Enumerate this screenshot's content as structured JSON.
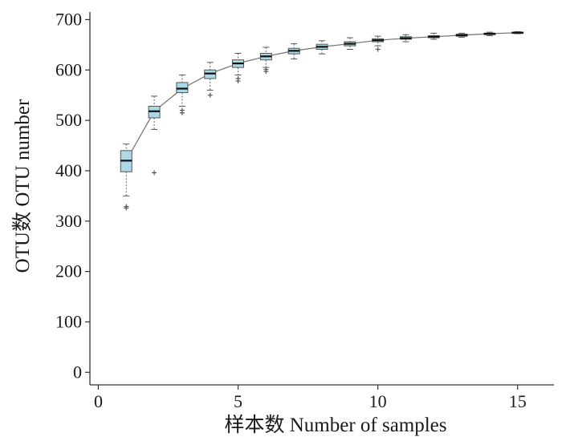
{
  "chart_data": {
    "type": "box",
    "xlabel": "样本数 Number of samples",
    "ylabel": "OTU数 OTU number",
    "xlim": [
      -0.3,
      16.3
    ],
    "ylim": [
      -25,
      715
    ],
    "x_ticks": [
      0,
      5,
      10,
      15
    ],
    "y_ticks": [
      0,
      100,
      200,
      300,
      400,
      500,
      600,
      700
    ],
    "grid": false,
    "colors": {
      "box_fill": "#add8e6",
      "median": "#111111",
      "line": "#707070"
    },
    "boxes": [
      {
        "x": 1,
        "q1": 398,
        "median": 420,
        "q3": 440,
        "whisker_low": 350,
        "whisker_high": 453,
        "outliers": [
          326,
          329
        ]
      },
      {
        "x": 2,
        "q1": 505,
        "median": 518,
        "q3": 528,
        "whisker_low": 482,
        "whisker_high": 548,
        "outliers": [
          396
        ]
      },
      {
        "x": 3,
        "q1": 555,
        "median": 563,
        "q3": 575,
        "whisker_low": 528,
        "whisker_high": 590,
        "outliers": [
          515,
          520
        ]
      },
      {
        "x": 4,
        "q1": 583,
        "median": 593,
        "q3": 600,
        "whisker_low": 560,
        "whisker_high": 615,
        "outliers": [
          550
        ]
      },
      {
        "x": 5,
        "q1": 605,
        "median": 613,
        "q3": 620,
        "whisker_low": 590,
        "whisker_high": 633,
        "outliers": [
          578,
          583
        ]
      },
      {
        "x": 6,
        "q1": 620,
        "median": 627,
        "q3": 633,
        "whisker_low": 605,
        "whisker_high": 645,
        "outliers": [
          597,
          601
        ]
      },
      {
        "x": 7,
        "q1": 632,
        "median": 638,
        "q3": 643,
        "whisker_low": 622,
        "whisker_high": 652,
        "outliers": []
      },
      {
        "x": 8,
        "q1": 641,
        "median": 646,
        "q3": 651,
        "whisker_low": 632,
        "whisker_high": 658,
        "outliers": []
      },
      {
        "x": 9,
        "q1": 648,
        "median": 652,
        "q3": 656,
        "whisker_low": 641,
        "whisker_high": 664,
        "outliers": []
      },
      {
        "x": 10,
        "q1": 656,
        "median": 659,
        "q3": 662,
        "whisker_low": 648,
        "whisker_high": 667,
        "outliers": [
          641
        ]
      },
      {
        "x": 11,
        "q1": 661,
        "median": 663,
        "q3": 666,
        "whisker_low": 656,
        "whisker_high": 670,
        "outliers": []
      },
      {
        "x": 12,
        "q1": 664,
        "median": 666,
        "q3": 668,
        "whisker_low": 661,
        "whisker_high": 673,
        "outliers": []
      },
      {
        "x": 13,
        "q1": 667,
        "median": 669,
        "q3": 671,
        "whisker_low": 665,
        "whisker_high": 673,
        "outliers": []
      },
      {
        "x": 14,
        "q1": 670,
        "median": 672,
        "q3": 673,
        "whisker_low": 668,
        "whisker_high": 675,
        "outliers": []
      },
      {
        "x": 15,
        "q1": 673,
        "median": 674,
        "q3": 675,
        "whisker_low": 672,
        "whisker_high": 676,
        "outliers": []
      }
    ]
  }
}
